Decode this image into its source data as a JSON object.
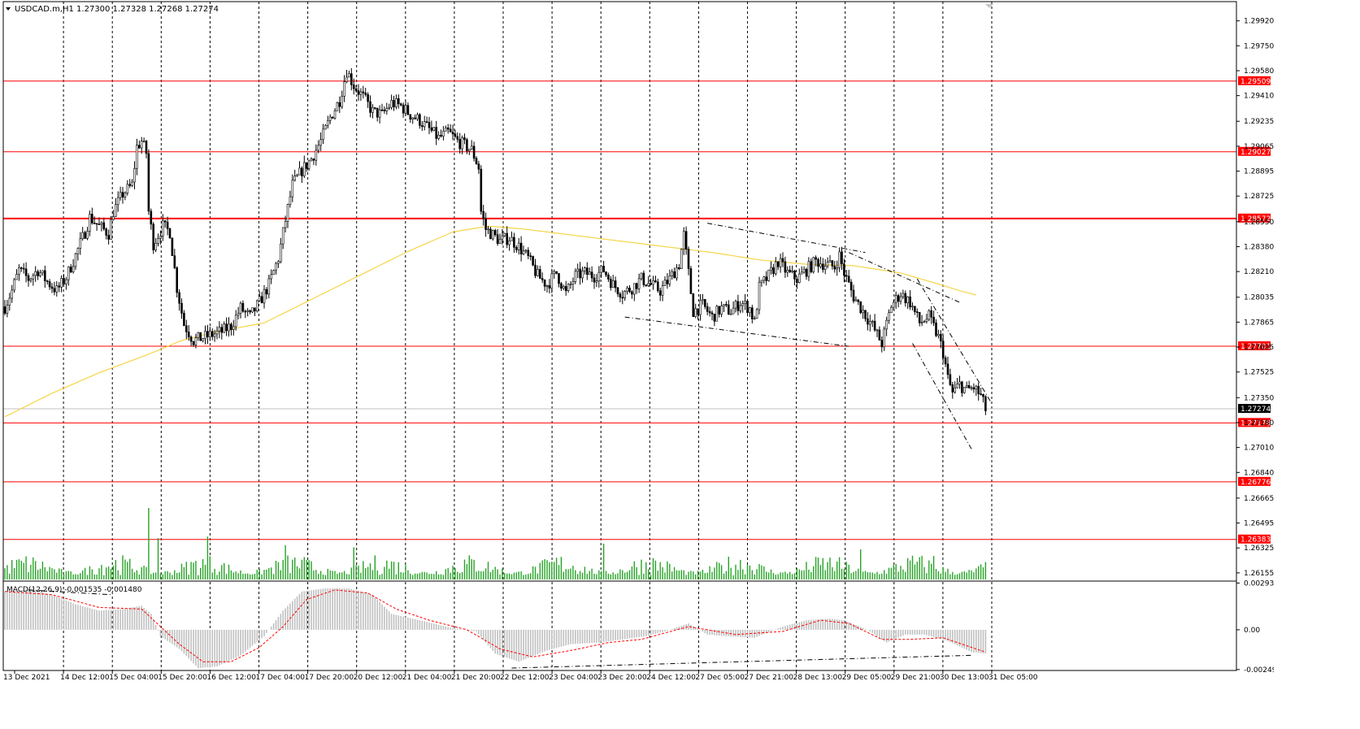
{
  "window": {
    "symbol_line": "USDCAD.m,H1  1.27300 1.27328 1.27268 1.27274"
  },
  "chart_data": {
    "type": "candlestick",
    "symbol": "USDCAD.m",
    "timeframe": "H1",
    "ohlc_last": {
      "open": 1.273,
      "high": 1.27328,
      "low": 1.27268,
      "close": 1.27274
    },
    "price_axis_ticks": [
      "1.29920",
      "1.29750",
      "1.29580",
      "1.29410",
      "1.29235",
      "1.29065",
      "1.28895",
      "1.28725",
      "1.28550",
      "1.28380",
      "1.28210",
      "1.28035",
      "1.27865",
      "1.27695",
      "1.27525",
      "1.27350",
      "1.27180",
      "1.27010",
      "1.26840",
      "1.26665",
      "1.26495",
      "1.26325",
      "1.26155"
    ],
    "price_range": [
      1.2611,
      1.3004
    ],
    "time_labels": [
      "13 Dec 2021",
      "14 Dec 12:00",
      "15 Dec 04:00",
      "15 Dec 20:00",
      "16 Dec 12:00",
      "17 Dec 04:00",
      "17 Dec 20:00",
      "20 Dec 12:00",
      "21 Dec 04:00",
      "21 Dec 20:00",
      "22 Dec 12:00",
      "23 Dec 04:00",
      "23 Dec 20:00",
      "24 Dec 12:00",
      "27 Dec 05:00",
      "27 Dec 21:00",
      "28 Dec 13:00",
      "29 Dec 05:00",
      "29 Dec 21:00",
      "30 Dec 13:00",
      "31 Dec 05:00"
    ],
    "horizontal_levels": [
      {
        "value": 1.29509,
        "label": "1.29509"
      },
      {
        "value": 1.29027,
        "label": "1.29027"
      },
      {
        "value": 1.28572,
        "label": "1.28572"
      },
      {
        "value": 1.27701,
        "label": "1.27701"
      },
      {
        "value": 1.27178,
        "label": "1.27178"
      },
      {
        "value": 1.26776,
        "label": "1.26776"
      },
      {
        "value": 1.26383,
        "label": "1.26383"
      }
    ],
    "current_price": {
      "value": 1.27274,
      "label": "1.27274"
    },
    "close_path": [
      [
        0,
        1.2797
      ],
      [
        3,
        1.2808
      ],
      [
        6,
        1.2822
      ],
      [
        10,
        1.2816
      ],
      [
        14,
        1.2822
      ],
      [
        18,
        1.2814
      ],
      [
        22,
        1.2808
      ],
      [
        26,
        1.2817
      ],
      [
        30,
        1.2832
      ],
      [
        34,
        1.2848
      ],
      [
        36,
        1.2858
      ],
      [
        40,
        1.2852
      ],
      [
        44,
        1.2847
      ],
      [
        46,
        1.2862
      ],
      [
        50,
        1.2874
      ],
      [
        54,
        1.288
      ],
      [
        56,
        1.2906
      ],
      [
        58,
        1.291
      ],
      [
        60,
        1.2902
      ],
      [
        61,
        1.2862
      ],
      [
        63,
        1.284
      ],
      [
        67,
        1.2852
      ],
      [
        70,
        1.2848
      ],
      [
        73,
        1.281
      ],
      [
        76,
        1.2785
      ],
      [
        80,
        1.2774
      ],
      [
        84,
        1.2776
      ],
      [
        88,
        1.2778
      ],
      [
        92,
        1.278
      ],
      [
        96,
        1.2784
      ],
      [
        100,
        1.2796
      ],
      [
        104,
        1.279
      ],
      [
        108,
        1.28
      ],
      [
        112,
        1.2812
      ],
      [
        116,
        1.283
      ],
      [
        119,
        1.2856
      ],
      [
        122,
        1.288
      ],
      [
        126,
        1.289
      ],
      [
        130,
        1.2898
      ],
      [
        134,
        1.291
      ],
      [
        138,
        1.2926
      ],
      [
        142,
        1.2938
      ],
      [
        145,
        1.2958
      ],
      [
        148,
        1.2948
      ],
      [
        152,
        1.294
      ],
      [
        156,
        1.293
      ],
      [
        160,
        1.2928
      ],
      [
        164,
        1.2936
      ],
      [
        168,
        1.2934
      ],
      [
        172,
        1.2928
      ],
      [
        176,
        1.2924
      ],
      [
        180,
        1.2918
      ],
      [
        184,
        1.2912
      ],
      [
        188,
        1.2916
      ],
      [
        192,
        1.291
      ],
      [
        196,
        1.2906
      ],
      [
        198,
        1.2904
      ],
      [
        201,
        1.2892
      ],
      [
        202,
        1.2862
      ],
      [
        204,
        1.285
      ],
      [
        207,
        1.2846
      ],
      [
        210,
        1.2842
      ],
      [
        214,
        1.2844
      ],
      [
        218,
        1.2838
      ],
      [
        222,
        1.283
      ],
      [
        226,
        1.2818
      ],
      [
        230,
        1.2812
      ],
      [
        234,
        1.282
      ],
      [
        238,
        1.2806
      ],
      [
        242,
        1.2818
      ],
      [
        246,
        1.282
      ],
      [
        250,
        1.2818
      ],
      [
        254,
        1.2822
      ],
      [
        258,
        1.2812
      ],
      [
        262,
        1.2806
      ],
      [
        266,
        1.281
      ],
      [
        270,
        1.2816
      ],
      [
        274,
        1.2812
      ],
      [
        278,
        1.2808
      ],
      [
        282,
        1.2816
      ],
      [
        286,
        1.2826
      ],
      [
        288,
        1.2846
      ],
      [
        290,
        1.282
      ],
      [
        292,
        1.2794
      ],
      [
        296,
        1.2798
      ],
      [
        300,
        1.279
      ],
      [
        304,
        1.2796
      ],
      [
        308,
        1.2794
      ],
      [
        312,
        1.28
      ],
      [
        316,
        1.2796
      ],
      [
        318,
        1.2786
      ],
      [
        320,
        1.281
      ],
      [
        324,
        1.2818
      ],
      [
        328,
        1.2828
      ],
      [
        332,
        1.282
      ],
      [
        336,
        1.2816
      ],
      [
        340,
        1.2822
      ],
      [
        344,
        1.2828
      ],
      [
        348,
        1.2826
      ],
      [
        352,
        1.2824
      ],
      [
        354,
        1.2832
      ],
      [
        356,
        1.282
      ],
      [
        360,
        1.2804
      ],
      [
        364,
        1.2794
      ],
      [
        368,
        1.2784
      ],
      [
        372,
        1.2772
      ],
      [
        376,
        1.2798
      ],
      [
        380,
        1.2806
      ],
      [
        384,
        1.28
      ],
      [
        388,
        1.2786
      ],
      [
        392,
        1.279
      ],
      [
        396,
        1.2776
      ],
      [
        398,
        1.2766
      ],
      [
        400,
        1.2748
      ],
      [
        402,
        1.2738
      ],
      [
        405,
        1.2744
      ],
      [
        408,
        1.274
      ],
      [
        411,
        1.2742
      ],
      [
        414,
        1.2736
      ],
      [
        416,
        1.2727
      ]
    ],
    "ma_path": [
      [
        0,
        1.2722
      ],
      [
        20,
        1.2738
      ],
      [
        40,
        1.2752
      ],
      [
        60,
        1.2764
      ],
      [
        75,
        1.2774
      ],
      [
        90,
        1.278
      ],
      [
        110,
        1.2786
      ],
      [
        130,
        1.2802
      ],
      [
        150,
        1.2818
      ],
      [
        170,
        1.2834
      ],
      [
        190,
        1.2848
      ],
      [
        205,
        1.2852
      ],
      [
        220,
        1.285
      ],
      [
        240,
        1.2846
      ],
      [
        260,
        1.2842
      ],
      [
        280,
        1.2838
      ],
      [
        300,
        1.2834
      ],
      [
        320,
        1.2829
      ],
      [
        340,
        1.2826
      ],
      [
        360,
        1.2825
      ],
      [
        380,
        1.282
      ],
      [
        395,
        1.2813
      ],
      [
        405,
        1.2808
      ],
      [
        412,
        1.2805
      ]
    ],
    "volume_peak_bars": [
      [
        61,
        1
      ],
      [
        65,
        0.58
      ],
      [
        86,
        0.6
      ],
      [
        119,
        0.48
      ],
      [
        148,
        0.45
      ],
      [
        254,
        0.5
      ],
      [
        363,
        0.42
      ],
      [
        394,
        0.33
      ]
    ],
    "trendlines": [
      {
        "from": [
          298,
          1.2854
        ],
        "to": [
          365,
          1.2834
        ]
      },
      {
        "from": [
          263,
          1.279
        ],
        "to": [
          358,
          1.277
        ]
      },
      {
        "from": [
          358,
          1.2834
        ],
        "to": [
          405,
          1.28
        ]
      },
      {
        "from": [
          387,
          1.2816
        ],
        "to": [
          419,
          1.273
        ]
      },
      {
        "from": [
          385,
          1.2772
        ],
        "to": [
          410,
          1.27
        ]
      }
    ],
    "macd": {
      "label": "MACD(12,26,9) -0.001535 -0.001480",
      "ticks": [
        "0.002932",
        "0.00",
        "-0.002491"
      ],
      "range": [
        -0.0025,
        0.00295
      ],
      "hist_path": [
        [
          0,
          0.0024
        ],
        [
          10,
          0.0025
        ],
        [
          20,
          0.0022
        ],
        [
          30,
          0.0016
        ],
        [
          40,
          0.0012
        ],
        [
          50,
          0.0013
        ],
        [
          58,
          0.0015
        ],
        [
          62,
          0.001
        ],
        [
          66,
          -0.0004
        ],
        [
          74,
          -0.0012
        ],
        [
          82,
          -0.0024
        ],
        [
          90,
          -0.0023
        ],
        [
          100,
          -0.0016
        ],
        [
          110,
          -0.0004
        ],
        [
          118,
          0.0012
        ],
        [
          126,
          0.0024
        ],
        [
          136,
          0.0026
        ],
        [
          146,
          0.0026
        ],
        [
          156,
          0.0022
        ],
        [
          164,
          0.001
        ],
        [
          176,
          0.0006
        ],
        [
          190,
          0.0001
        ],
        [
          200,
          -0.0001
        ],
        [
          208,
          -0.0015
        ],
        [
          218,
          -0.002
        ],
        [
          230,
          -0.0013
        ],
        [
          240,
          -0.0009
        ],
        [
          252,
          -0.0008
        ],
        [
          262,
          -0.0006
        ],
        [
          272,
          -0.0004
        ],
        [
          280,
          -0.0001
        ],
        [
          290,
          0.0004
        ],
        [
          298,
          -0.0003
        ],
        [
          306,
          -0.0004
        ],
        [
          318,
          -0.0005
        ],
        [
          330,
          0.0002
        ],
        [
          340,
          0.0006
        ],
        [
          350,
          0.0007
        ],
        [
          356,
          0.0006
        ],
        [
          366,
          0.0
        ],
        [
          374,
          -0.0008
        ],
        [
          382,
          -0.0003
        ],
        [
          390,
          -0.0003
        ],
        [
          400,
          -0.0007
        ],
        [
          410,
          -0.0014
        ],
        [
          416,
          -0.0015
        ]
      ],
      "signal_path": [
        [
          0,
          0.0024
        ],
        [
          20,
          0.0022
        ],
        [
          40,
          0.0014
        ],
        [
          58,
          0.0013
        ],
        [
          66,
          0.0002
        ],
        [
          74,
          -0.0009
        ],
        [
          84,
          -0.002
        ],
        [
          96,
          -0.002
        ],
        [
          108,
          -0.0011
        ],
        [
          118,
          0.0002
        ],
        [
          128,
          0.0019
        ],
        [
          140,
          0.0025
        ],
        [
          154,
          0.0023
        ],
        [
          166,
          0.0013
        ],
        [
          180,
          0.0006
        ],
        [
          196,
          0.0
        ],
        [
          210,
          -0.0012
        ],
        [
          224,
          -0.0017
        ],
        [
          240,
          -0.0013
        ],
        [
          256,
          -0.0008
        ],
        [
          270,
          -0.0006
        ],
        [
          290,
          0.0002
        ],
        [
          310,
          -0.0003
        ],
        [
          330,
          -0.0001
        ],
        [
          346,
          0.0006
        ],
        [
          358,
          0.0004
        ],
        [
          372,
          -0.0006
        ],
        [
          384,
          -0.0006
        ],
        [
          398,
          -0.0005
        ],
        [
          416,
          -0.0014
        ]
      ],
      "trendlines": [
        {
          "from": [
            10,
            0.0025
          ],
          "to": [
            45,
            0.0022
          ]
        },
        {
          "from": [
            215,
            -0.0024
          ],
          "to": [
            410,
            -0.0016
          ]
        }
      ]
    },
    "grid": "vertical-dotted"
  },
  "colors": {
    "level": "#ff0000",
    "candle": "#000000",
    "ma": "#f5d547",
    "volume": "#27a327",
    "macd_hist": "#c0c0c0",
    "macd_signal": "#ff0000",
    "grid": "#000000",
    "price_tag_bg": "#ff0000",
    "current_tag_bg": "#000000"
  }
}
